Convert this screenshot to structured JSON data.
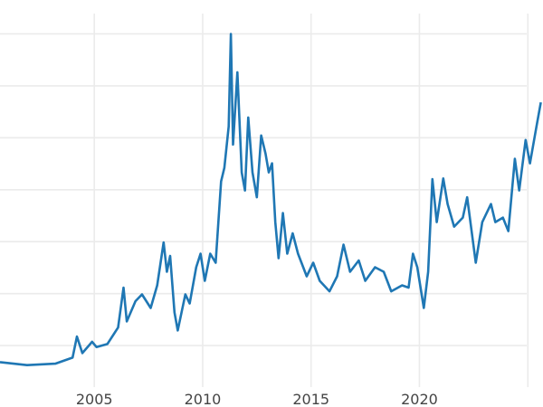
{
  "chart_data": {
    "type": "line",
    "title": "",
    "xlabel": "",
    "ylabel": "",
    "xlim": [
      2000.65,
      2025.7
    ],
    "ylim": [
      -1.56,
      52.5
    ],
    "x_ticks": [
      2005,
      2010,
      2015,
      2020,
      2025
    ],
    "x_tick_labels": [
      "2005",
      "2010",
      "2015",
      "2020",
      ""
    ],
    "y_gridlines": [
      6.6,
      13.5,
      20.4,
      27.3,
      34.2,
      41.1,
      48.0
    ],
    "grid": true,
    "legend": "none",
    "color": "#1f77b4",
    "series": [
      {
        "x": [
          2000.65,
          2001.9,
          2003.2,
          2004.0,
          2004.2,
          2004.45,
          2004.9,
          2005.1,
          2005.6,
          2006.1,
          2006.35,
          2006.5,
          2006.9,
          2007.2,
          2007.6,
          2007.9,
          2008.2,
          2008.35,
          2008.5,
          2008.7,
          2008.85,
          2009.2,
          2009.4,
          2009.7,
          2009.9,
          2010.1,
          2010.35,
          2010.6,
          2010.85,
          2011.0,
          2011.2,
          2011.3,
          2011.4,
          2011.6,
          2011.8,
          2011.95,
          2012.1,
          2012.3,
          2012.5,
          2012.7,
          2012.9,
          2013.05,
          2013.2,
          2013.35,
          2013.5,
          2013.7,
          2013.9,
          2014.15,
          2014.4,
          2014.8,
          2015.1,
          2015.4,
          2015.85,
          2016.2,
          2016.5,
          2016.8,
          2017.2,
          2017.5,
          2017.95,
          2018.35,
          2018.7,
          2019.2,
          2019.5,
          2019.7,
          2019.9,
          2020.2,
          2020.4,
          2020.6,
          2020.8,
          2021.1,
          2021.3,
          2021.6,
          2022.0,
          2022.2,
          2022.6,
          2022.9,
          2023.3,
          2023.5,
          2023.85,
          2024.1,
          2024.4,
          2024.6,
          2024.9,
          2025.1,
          2025.4,
          2025.6
        ],
        "y": [
          4.4,
          4.0,
          4.2,
          5.0,
          7.8,
          5.6,
          7.1,
          6.4,
          6.8,
          9.0,
          14.3,
          9.8,
          12.5,
          13.4,
          11.6,
          14.6,
          20.3,
          16.4,
          18.5,
          11.0,
          8.6,
          13.4,
          12.2,
          17.0,
          18.8,
          15.2,
          18.8,
          17.6,
          28.4,
          30.2,
          35.7,
          48.0,
          33.3,
          42.9,
          29.6,
          27.2,
          36.9,
          29.6,
          26.3,
          34.5,
          32.1,
          29.6,
          30.8,
          23.0,
          18.2,
          24.2,
          18.8,
          21.5,
          18.8,
          15.8,
          17.6,
          15.2,
          13.8,
          15.8,
          20.0,
          16.4,
          17.9,
          15.2,
          17.0,
          16.4,
          13.8,
          14.6,
          14.3,
          18.8,
          17.0,
          11.6,
          16.4,
          28.7,
          23.0,
          28.8,
          25.4,
          22.4,
          23.6,
          26.3,
          17.6,
          23.0,
          25.4,
          23.0,
          23.6,
          21.8,
          31.4,
          27.2,
          33.9,
          30.8,
          35.7,
          38.9
        ]
      }
    ]
  }
}
